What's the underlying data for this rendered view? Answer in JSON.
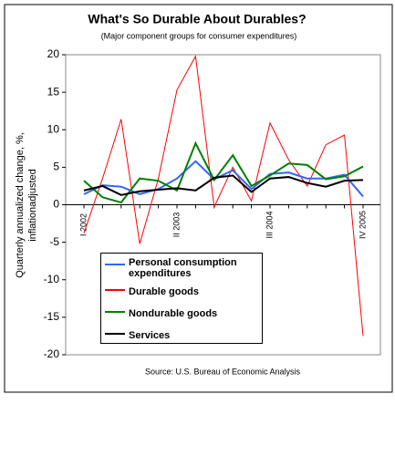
{
  "chart_data": {
    "type": "line",
    "title": "What's So Durable About Durables?",
    "subtitle": "(Major component groups for consumer expenditures)",
    "y_label": [
      "Quarterly annualized change, %,",
      "inflationadjusted"
    ],
    "source": "Source: U.S. Bureau of Economic Analysis",
    "categories": [
      "I 2002",
      null,
      null,
      null,
      null,
      "II 2003",
      null,
      null,
      null,
      null,
      "III 2004",
      null,
      null,
      null,
      null,
      "IV 2005"
    ],
    "ylim": [
      -20,
      20
    ],
    "yticks": [
      -20,
      -15,
      -10,
      -5,
      0,
      5,
      10,
      15,
      20
    ],
    "series": [
      {
        "name": "Personal consumption expenditures",
        "color": "#3366ff",
        "values": [
          1.4,
          2.6,
          2.4,
          1.4,
          2.1,
          3.5,
          5.8,
          3.4,
          4.6,
          2.1,
          4.1,
          4.3,
          3.5,
          3.5,
          4.0,
          1.1
        ]
      },
      {
        "name": "Durable goods",
        "color": "#ff0000",
        "values": [
          -3.8,
          3.5,
          11.4,
          -5.2,
          3.5,
          15.3,
          19.8,
          -0.3,
          5.0,
          0.5,
          10.9,
          6.0,
          2.5,
          8.0,
          9.3,
          -17.5
        ]
      },
      {
        "name": "Nondurable goods",
        "color": "#008000",
        "values": [
          3.2,
          1.0,
          0.3,
          3.5,
          3.2,
          1.9,
          8.2,
          3.3,
          6.6,
          2.5,
          3.9,
          5.5,
          5.3,
          3.4,
          3.8,
          5.1
        ]
      },
      {
        "name": "Services",
        "color": "#000000",
        "values": [
          1.9,
          2.5,
          1.3,
          1.8,
          2.0,
          2.2,
          1.9,
          3.6,
          3.9,
          1.7,
          3.5,
          3.7,
          2.9,
          2.4,
          3.2,
          3.3
        ]
      }
    ]
  }
}
